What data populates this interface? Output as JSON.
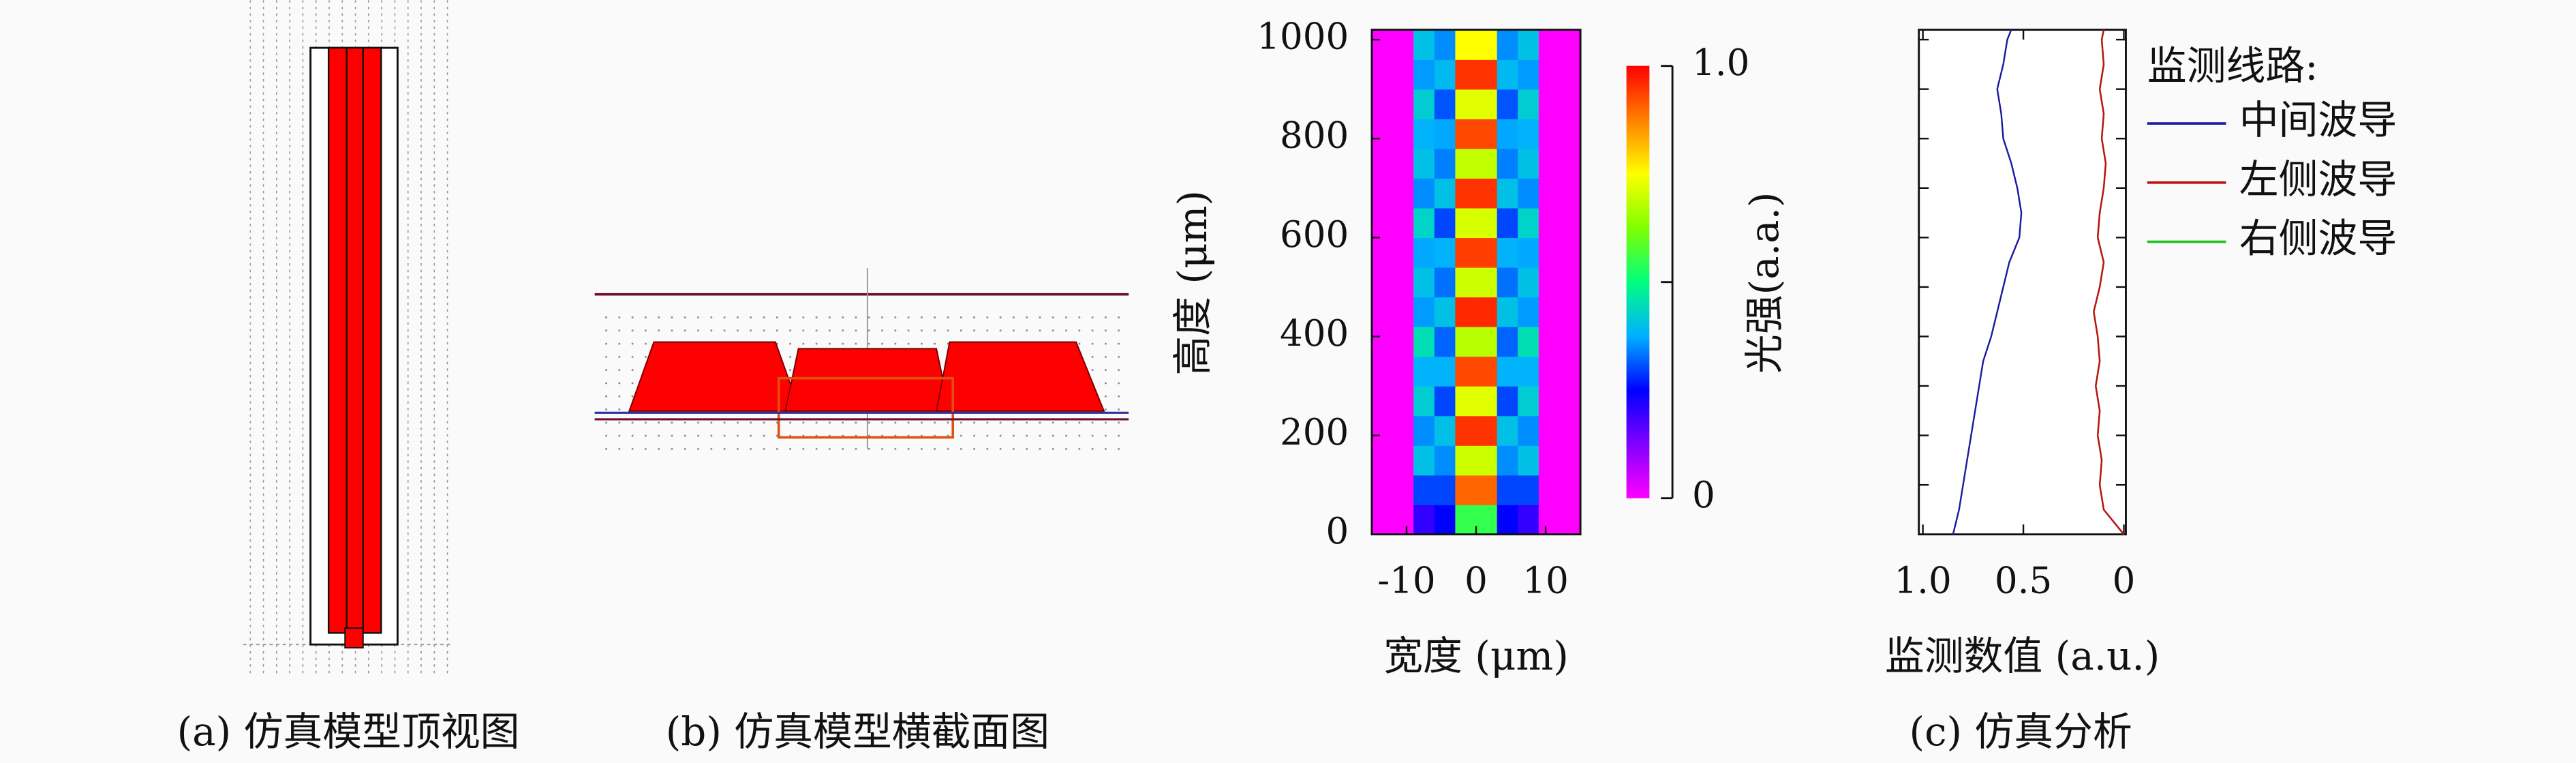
{
  "captions": [
    "(a) 仿真模型顶视图",
    "(b) 仿真模型横截面图",
    "(c) 仿真分析"
  ],
  "chart_data": [
    {
      "type": "heatmap",
      "xlabel": "宽度 (μm)",
      "ylabel": "高度 (μm)",
      "xlim": [
        -15,
        15
      ],
      "ylim": [
        0,
        1020
      ],
      "xticks": [
        -10,
        0,
        10
      ],
      "yticks": [
        0,
        200,
        400,
        600,
        800,
        1000
      ],
      "x": [
        -13.5,
        -10.5,
        -7.5,
        -4.5,
        -1.5,
        1.5,
        4.5,
        7.5,
        10.5,
        13.5
      ],
      "y": [
        30,
        90,
        150,
        210,
        270,
        330,
        390,
        450,
        510,
        570,
        630,
        690,
        750,
        810,
        870,
        930,
        990
      ],
      "z": [
        [
          0,
          0,
          0.2,
          0.25,
          0.55,
          0.55,
          0.25,
          0.2,
          0,
          0
        ],
        [
          0,
          0,
          0.3,
          0.3,
          0.9,
          0.9,
          0.3,
          0.3,
          0,
          0
        ],
        [
          0,
          0,
          0.4,
          0.35,
          0.7,
          0.7,
          0.35,
          0.4,
          0,
          0
        ],
        [
          0,
          0,
          0.35,
          0.4,
          0.95,
          0.95,
          0.4,
          0.35,
          0,
          0
        ],
        [
          0,
          0,
          0.42,
          0.3,
          0.72,
          0.72,
          0.3,
          0.42,
          0,
          0
        ],
        [
          0,
          0,
          0.38,
          0.38,
          0.93,
          0.93,
          0.38,
          0.38,
          0,
          0
        ],
        [
          0,
          0,
          0.45,
          0.32,
          0.68,
          0.68,
          0.32,
          0.45,
          0,
          0
        ],
        [
          0,
          0,
          0.36,
          0.4,
          0.96,
          0.96,
          0.4,
          0.36,
          0,
          0
        ],
        [
          0,
          0,
          0.4,
          0.33,
          0.7,
          0.7,
          0.33,
          0.4,
          0,
          0
        ],
        [
          0,
          0,
          0.37,
          0.38,
          0.94,
          0.94,
          0.38,
          0.37,
          0,
          0
        ],
        [
          0,
          0,
          0.43,
          0.3,
          0.71,
          0.71,
          0.3,
          0.43,
          0,
          0
        ],
        [
          0,
          0,
          0.35,
          0.4,
          0.95,
          0.95,
          0.4,
          0.35,
          0,
          0
        ],
        [
          0,
          0,
          0.4,
          0.34,
          0.69,
          0.69,
          0.34,
          0.4,
          0,
          0
        ],
        [
          0,
          0,
          0.38,
          0.37,
          0.93,
          0.93,
          0.37,
          0.38,
          0,
          0
        ],
        [
          0,
          0,
          0.42,
          0.31,
          0.72,
          0.72,
          0.31,
          0.42,
          0,
          0
        ],
        [
          0,
          0,
          0.36,
          0.39,
          0.95,
          0.95,
          0.39,
          0.36,
          0,
          0
        ],
        [
          0,
          0,
          0.4,
          0.35,
          0.75,
          0.75,
          0.35,
          0.4,
          0,
          0
        ]
      ],
      "colormap": [
        "#ff00ff",
        "#8000ff",
        "#0000ff",
        "#00b0ff",
        "#00ff80",
        "#80ff00",
        "#ffff00",
        "#ff8000",
        "#ff0000"
      ],
      "colorbar": {
        "label": "光强(a.a.)",
        "lim": [
          0,
          1
        ],
        "ticks": [
          0,
          {
            "value": 0.5,
            "label": null
          },
          {
            "value": 1,
            "label": "1.0"
          }
        ]
      }
    },
    {
      "type": "line",
      "xlabel": "监测数值 (a.u.)",
      "xlim": [
        1.02,
        -0.01
      ],
      "ylim": [
        0,
        1020
      ],
      "xticks": [
        {
          "value": 1,
          "label": "1.0"
        },
        0.5,
        0
      ],
      "yticks": [
        0,
        100,
        200,
        300,
        400,
        500,
        600,
        700,
        800,
        900,
        1000
      ],
      "ytick_labels": false,
      "y": [
        0,
        50,
        100,
        150,
        200,
        250,
        300,
        350,
        400,
        450,
        500,
        550,
        600,
        650,
        700,
        750,
        800,
        850,
        900,
        950,
        1000,
        1020
      ],
      "legend_title": "监测线路:",
      "legend": "right-outside",
      "series": [
        {
          "name": "中间波导",
          "color": "#1a1aa0",
          "values": [
            0.85,
            0.82,
            0.8,
            0.78,
            0.76,
            0.74,
            0.72,
            0.7,
            0.66,
            0.63,
            0.6,
            0.57,
            0.52,
            0.51,
            0.53,
            0.56,
            0.6,
            0.61,
            0.63,
            0.6,
            0.58,
            0.56
          ]
        },
        {
          "name": "左侧波导",
          "color": "#c01010",
          "values": [
            0.0,
            0.1,
            0.12,
            0.11,
            0.13,
            0.12,
            0.14,
            0.12,
            0.13,
            0.15,
            0.12,
            0.1,
            0.13,
            0.12,
            0.1,
            0.09,
            0.11,
            0.1,
            0.12,
            0.1,
            0.11,
            0.1
          ]
        },
        {
          "name": "右侧波导",
          "color": "#20c020",
          "values": [
            0.0,
            0.1,
            0.12,
            0.11,
            0.13,
            0.12,
            0.14,
            0.12,
            0.13,
            0.15,
            0.12,
            0.1,
            0.13,
            0.12,
            0.1,
            0.09,
            0.11,
            0.1,
            0.12,
            0.1,
            0.11,
            0.1
          ]
        }
      ]
    }
  ]
}
